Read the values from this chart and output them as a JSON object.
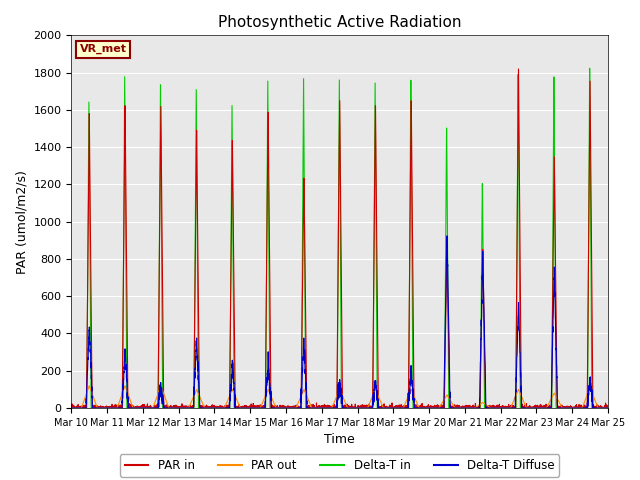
{
  "title": "Photosynthetic Active Radiation",
  "xlabel": "Time",
  "ylabel": "PAR (umol/m2/s)",
  "ylim": [
    0,
    2000
  ],
  "background_color": "#e8e8e8",
  "annotation_text": "VR_met",
  "legend_labels": [
    "PAR in",
    "PAR out",
    "Delta-T in",
    "Delta-T Diffuse"
  ],
  "legend_colors": [
    "#cc0000",
    "#ff8c00",
    "#00cc00",
    "#0000cc"
  ],
  "series_colors": {
    "par_in": "#cc0000",
    "par_out": "#ff8c00",
    "delta_t_in": "#00cc00",
    "delta_t_diffuse": "#0000cc"
  },
  "n_days": 15,
  "pts_per_day": 288,
  "par_in_peaks": [
    1570,
    1640,
    1640,
    1500,
    1460,
    1620,
    1250,
    1680,
    1660,
    1680,
    850,
    850,
    1820,
    1350,
    1750
  ],
  "par_out_peaks": [
    120,
    120,
    120,
    100,
    100,
    100,
    100,
    100,
    100,
    100,
    70,
    30,
    100,
    80,
    110
  ],
  "delta_t_in_peaks": [
    1650,
    1780,
    1740,
    1720,
    1640,
    1780,
    1800,
    1800,
    1790,
    1810,
    1540,
    1230,
    1820,
    1800,
    1840
  ],
  "delta_t_diffuse_peaks": [
    460,
    310,
    110,
    370,
    230,
    230,
    350,
    135,
    135,
    200,
    940,
    820,
    550,
    750,
    150
  ],
  "ticklabels": [
    "Mar 10",
    "Mar 11",
    "Mar 12",
    "Mar 13",
    "Mar 14",
    "Mar 15",
    "Mar 16",
    "Mar 17",
    "Mar 18",
    "Mar 19",
    "Mar 20",
    "Mar 21",
    "Mar 22",
    "Mar 23",
    "Mar 24",
    "Mar 25"
  ]
}
